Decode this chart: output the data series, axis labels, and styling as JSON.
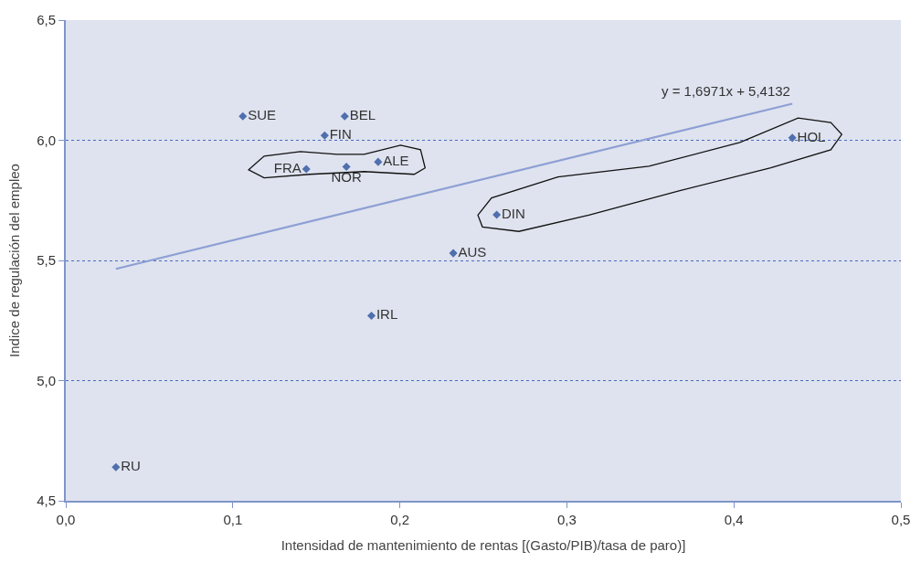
{
  "chart_data": {
    "type": "scatter",
    "xlabel": "Intensidad de mantenimiento de rentas [(Gasto/PIB)/tasa de paro)]",
    "ylabel": "Indice de regulación del empleo",
    "series": [
      {
        "color": "#4f6fae",
        "marker": "diamond",
        "x": [
          0.106,
          0.167,
          0.155,
          0.144,
          0.168,
          0.187,
          0.435,
          0.258,
          0.232,
          0.183,
          0.03
        ],
        "values": [
          6.1,
          6.1,
          6.02,
          5.88,
          5.89,
          5.91,
          6.01,
          5.69,
          5.53,
          5.27,
          4.64
        ],
        "value_labels": [
          "SUE",
          "BEL",
          "FIN",
          "FRA",
          "NOR",
          "ALE",
          "HOL",
          "DIN",
          "AUS",
          "IRL",
          "RU"
        ]
      },
      {
        "type": "line",
        "color": "#8d9fd4",
        "x": [
          0.03,
          0.435
        ],
        "values": [
          5.465,
          6.152
        ]
      }
    ],
    "annotations": [
      "y = 1,6971x + 5,4132"
    ],
    "xlim": [
      0,
      0.5
    ],
    "xticks": [
      {
        "value": 0,
        "label": "0,0"
      },
      {
        "value": 0.1,
        "label": "0,1"
      },
      {
        "value": 0.2,
        "label": "0,2"
      },
      {
        "value": 0.3,
        "label": "0,3"
      },
      {
        "value": 0.4,
        "label": "0,4"
      },
      {
        "value": 0.5,
        "label": "0,5"
      }
    ],
    "ylim": [
      4.5,
      6.5
    ],
    "yticks": [
      {
        "value": 4.5,
        "label": "4,5"
      },
      {
        "value": 5.0,
        "label": "5,0"
      },
      {
        "value": 5.5,
        "label": "5,5"
      },
      {
        "value": 6.0,
        "label": "6,0"
      },
      {
        "value": 6.5,
        "label": "6,5"
      }
    ],
    "grid": "y"
  }
}
